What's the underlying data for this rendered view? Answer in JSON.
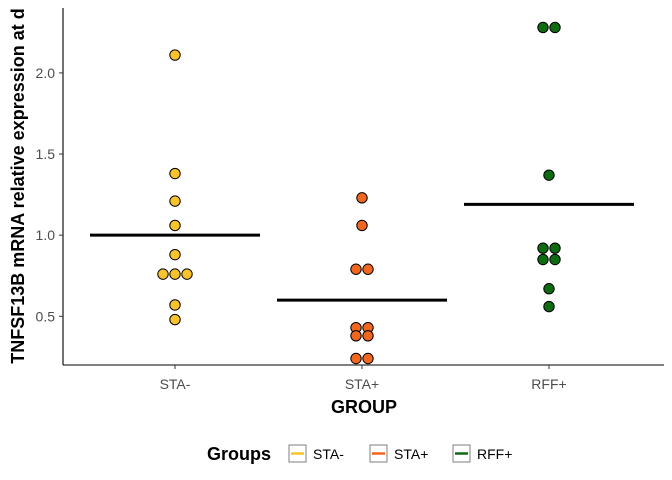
{
  "chart_data": {
    "type": "scatter",
    "subtype": "dot-plot-with-mean-bars",
    "xlabel": "GROUP",
    "ylabel": "TNFSF13B mRNA relative expression at d",
    "categories": [
      "STA-",
      "STA+",
      "RFF+"
    ],
    "y_ticks": [
      "0.5",
      "1.0",
      "1.5",
      "2.0"
    ],
    "ylim": [
      0.2,
      2.4
    ],
    "grid": false,
    "legend": {
      "title": "Groups",
      "position": "bottom",
      "entries": [
        "STA-",
        "STA+",
        "RFF+"
      ]
    },
    "colors": {
      "STA-": "#f8c32c",
      "STA+": "#f2671f",
      "RFF+": "#0f6b12",
      "mean_line": "#000000",
      "point_outline": "#000000"
    },
    "series": [
      {
        "name": "STA-",
        "points": [
          2.11,
          1.38,
          1.21,
          1.06,
          0.88,
          0.76,
          0.76,
          0.76,
          0.57,
          0.48
        ],
        "mean": 1.0
      },
      {
        "name": "STA+",
        "points": [
          1.23,
          1.06,
          0.79,
          0.79,
          0.43,
          0.43,
          0.38,
          0.38,
          0.24,
          0.24
        ],
        "mean": 0.6
      },
      {
        "name": "RFF+",
        "points": [
          2.28,
          2.28,
          1.37,
          0.92,
          0.92,
          0.85,
          0.85,
          0.67,
          0.56
        ],
        "mean": 1.19
      }
    ]
  }
}
